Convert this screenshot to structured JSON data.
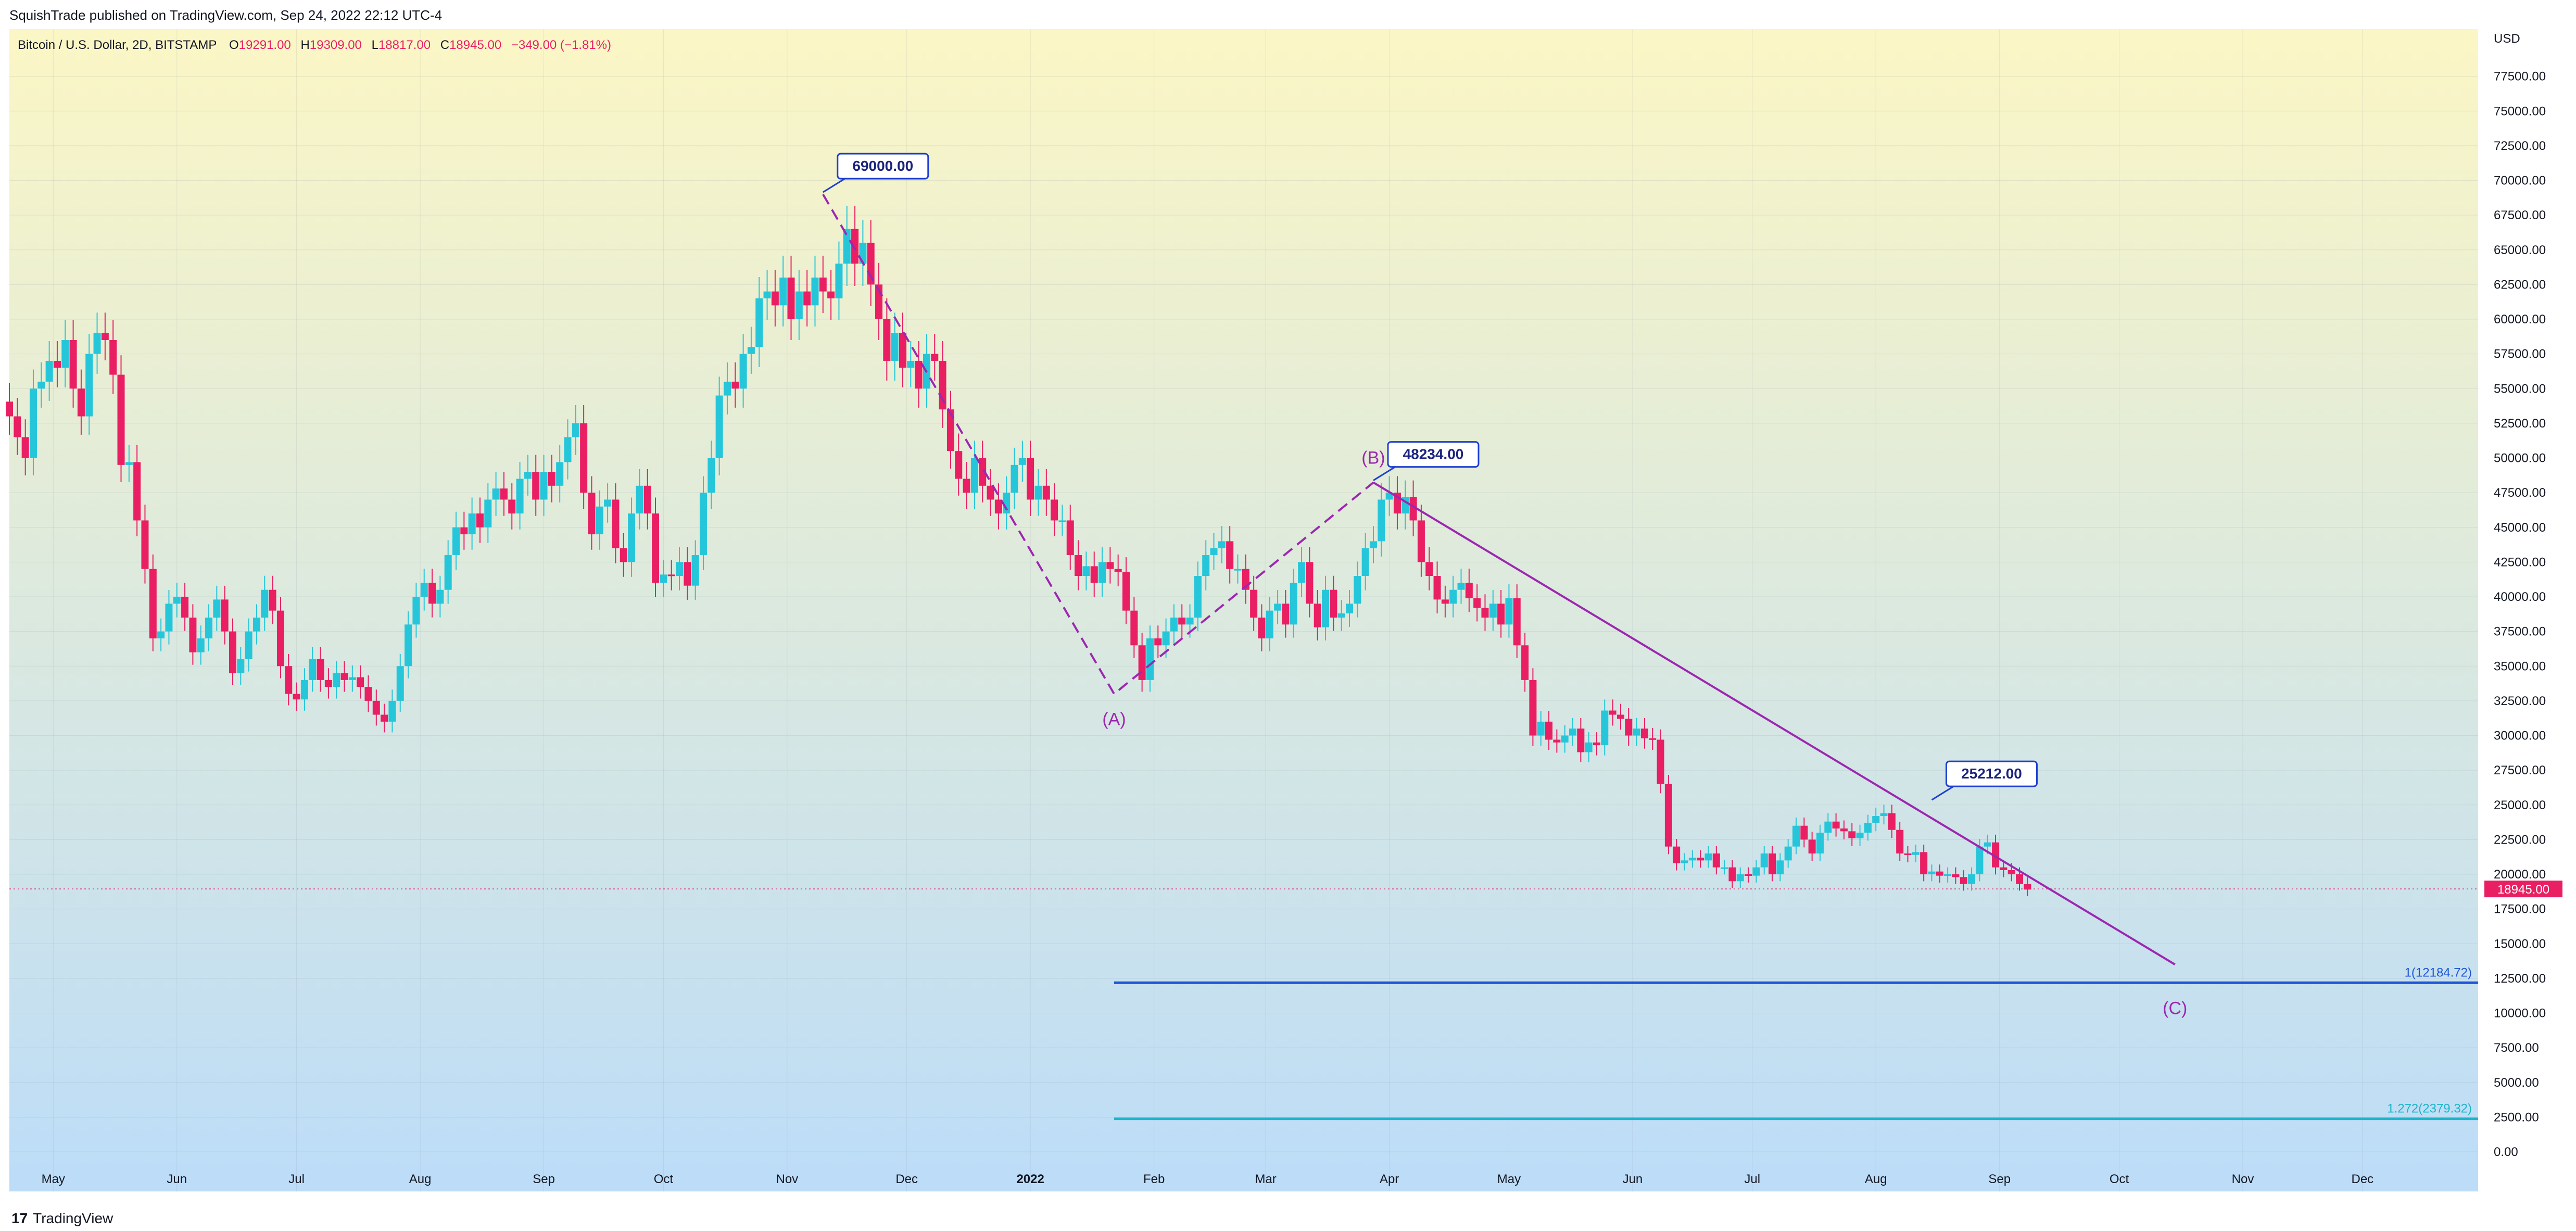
{
  "header": {
    "published": "SquishTrade published on TradingView.com, Sep 24, 2022 22:12 UTC-4",
    "symbol": "Bitcoin / U.S. Dollar, 2D, BITSTAMP",
    "o_label": "O",
    "o_value": "19291.00",
    "h_label": "H",
    "h_value": "19309.00",
    "l_label": "L",
    "l_value": "18817.00",
    "c_label": "C",
    "c_value": "18945.00",
    "change": "−349.00 (−1.81%)"
  },
  "footer": {
    "brand_mark": "17",
    "brand": "TradingView"
  },
  "colors": {
    "up": "#26c6da",
    "down": "#e91e63",
    "bg_top": "#fbf6c5",
    "bg_bottom": "#bcdcf8",
    "wave": "#9c27b0",
    "fib1": "#1e56d9",
    "fib2": "#1bb5c9",
    "callout": "#1e3fd0"
  },
  "chart_data": {
    "type": "candlestick",
    "currency": "USD",
    "ylim": [
      0,
      80000
    ],
    "y_ticks": [
      0,
      2500,
      5000,
      7500,
      10000,
      12500,
      15000,
      17500,
      20000,
      22500,
      25000,
      27500,
      30000,
      32500,
      35000,
      37500,
      40000,
      42500,
      45000,
      47500,
      50000,
      52500,
      55000,
      57500,
      60000,
      62500,
      65000,
      67500,
      70000,
      72500,
      75000,
      77500
    ],
    "y_tick_labels": [
      "0.00",
      "2500.00",
      "5000.00",
      "7500.00",
      "10000.00",
      "12500.00",
      "15000.00",
      "17500.00",
      "20000.00",
      "22500.00",
      "25000.00",
      "27500.00",
      "30000.00",
      "32500.00",
      "35000.00",
      "37500.00",
      "40000.00",
      "42500.00",
      "45000.00",
      "47500.00",
      "50000.00",
      "52500.00",
      "55000.00",
      "57500.00",
      "60000.00",
      "62500.00",
      "65000.00",
      "67500.00",
      "70000.00",
      "72500.00",
      "75000.00",
      "77500.00"
    ],
    "x_range": [
      "2021-04-20",
      "2022-12-30"
    ],
    "x_ticks": [
      {
        "date": "2021-05-01",
        "label": "May"
      },
      {
        "date": "2021-06-01",
        "label": "Jun"
      },
      {
        "date": "2021-07-01",
        "label": "Jul"
      },
      {
        "date": "2021-08-01",
        "label": "Aug"
      },
      {
        "date": "2021-09-01",
        "label": "Sep"
      },
      {
        "date": "2021-10-01",
        "label": "Oct"
      },
      {
        "date": "2021-11-01",
        "label": "Nov"
      },
      {
        "date": "2021-12-01",
        "label": "Dec"
      },
      {
        "date": "2022-01-01",
        "label": "2022",
        "bold": true
      },
      {
        "date": "2022-02-01",
        "label": "Feb"
      },
      {
        "date": "2022-03-01",
        "label": "Mar"
      },
      {
        "date": "2022-04-01",
        "label": "Apr"
      },
      {
        "date": "2022-05-01",
        "label": "May"
      },
      {
        "date": "2022-06-01",
        "label": "Jun"
      },
      {
        "date": "2022-07-01",
        "label": "Jul"
      },
      {
        "date": "2022-08-01",
        "label": "Aug"
      },
      {
        "date": "2022-09-01",
        "label": "Sep"
      },
      {
        "date": "2022-10-01",
        "label": "Oct"
      },
      {
        "date": "2022-11-01",
        "label": "Nov"
      },
      {
        "date": "2022-12-01",
        "label": "Dec"
      }
    ],
    "candle_interval": "2D",
    "closes": [
      [
        53000,
        51500,
        50000,
        55000,
        55500,
        57000,
        56500,
        58500,
        55000,
        53000,
        57500,
        59000,
        58500,
        56000,
        49500,
        49700,
        45500,
        42000,
        37000,
        37500,
        39500,
        40000,
        38500,
        36000,
        37000,
        38500,
        39800,
        37500,
        34500,
        35500,
        37500,
        38500,
        40500,
        39000,
        35000,
        33000,
        32600,
        34000,
        35500,
        34000,
        33500,
        34500,
        34000,
        34200,
        33500,
        32500,
        31500,
        31000,
        32500,
        35000,
        38000,
        40000,
        41000,
        39500,
        40500,
        43000,
        45000,
        44500,
        46000,
        45000,
        47000,
        47800,
        47000,
        46000,
        48500,
        49000,
        47000,
        49000,
        48000,
        49700,
        51500,
        52500,
        47500,
        44500,
        46500,
        47000,
        43500,
        42500,
        46000,
        48000,
        46000,
        41000,
        41600,
        41500,
        42500,
        40800,
        43000,
        47500,
        50000,
        54500,
        55500,
        55000,
        57500,
        58000,
        61500,
        62000,
        61000,
        63000,
        60000,
        62000,
        61000,
        63000,
        62000,
        61500,
        64000,
        66500,
        64000,
        65500,
        62500,
        60000,
        57000,
        59000,
        56500,
        57000,
        55000,
        57500,
        57000,
        53500,
        50500,
        48500,
        47500,
        50000,
        48000,
        47000,
        46000,
        47500,
        49500,
        50000,
        47000,
        48000,
        47000,
        45500,
        45500,
        43000,
        41500,
        42200,
        41000,
        42500,
        42000,
        41800,
        39000,
        36500,
        34000,
        37000,
        36500,
        37500,
        38500,
        38000,
        38500,
        41500,
        43000,
        43500,
        44000,
        42000,
        42000,
        40500,
        38500,
        37000,
        39000,
        39500,
        38000,
        41000,
        42500,
        39500,
        37800,
        40500,
        38500,
        38800,
        39500,
        41500,
        43500,
        44000,
        47000,
        47500,
        46000,
        47200,
        45500,
        42500,
        41500,
        39800,
        39500,
        40500,
        41000,
        39900,
        39200,
        38500,
        39500,
        38000,
        39900,
        36500,
        34000,
        30000,
        31000,
        29700,
        29500,
        30000,
        30500,
        28800,
        29500,
        29300,
        31800,
        31500,
        31200,
        30000,
        30500,
        29800,
        29700,
        26500,
        22000,
        20800,
        21000,
        21200,
        21000,
        21500,
        20500,
        20500,
        19500,
        20000,
        19900,
        20500,
        21500,
        20000,
        21000,
        22000,
        23500,
        22500,
        21500,
        23000,
        23800,
        23300,
        23100,
        22600,
        23000,
        23700,
        24200,
        24400,
        23200,
        21500,
        21400,
        21600,
        20000,
        20200,
        19900,
        20000,
        19800,
        19300,
        20000,
        22000,
        22300,
        20500,
        20300,
        20000,
        19300,
        18900
      ]
    ],
    "annotations": [
      {
        "type": "price_label",
        "text": "69000.00",
        "date": "2021-11-10",
        "value": 69000
      },
      {
        "type": "price_label",
        "text": "48234.00",
        "date": "2022-03-28",
        "value": 48234
      },
      {
        "type": "price_label",
        "text": "25212.00",
        "date": "2022-08-15",
        "value": 25212
      },
      {
        "type": "wave_label",
        "text": "(A)",
        "date": "2022-01-22",
        "value": 33000
      },
      {
        "type": "wave_label",
        "text": "(B)",
        "date": "2022-03-28",
        "value": 48234
      },
      {
        "type": "wave_label",
        "text": "(C)",
        "date": "2022-10-15",
        "value": 12184.72
      },
      {
        "type": "fib_level",
        "text": "1(12184.72)",
        "value": 12184.72
      },
      {
        "type": "fib_level",
        "text": "1.272(2379.32)",
        "value": 2379.32
      },
      {
        "type": "last_price",
        "text": "18945.00",
        "value": 18945
      }
    ]
  }
}
